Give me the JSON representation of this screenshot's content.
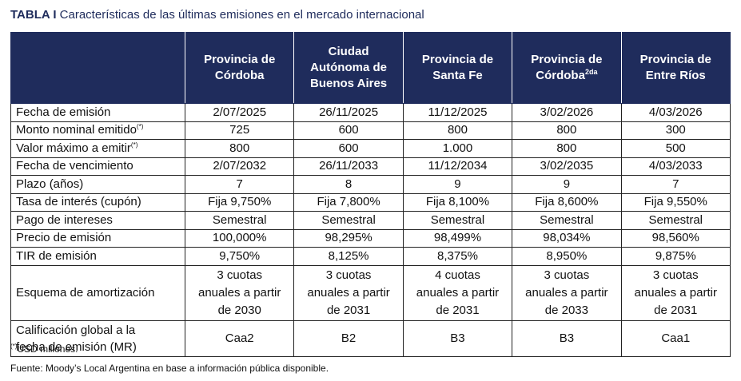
{
  "title": {
    "tag": "TABLA I",
    "text": "Características de las últimas emisiones en el mercado internacional"
  },
  "table": {
    "headers": [
      {
        "lines": [
          "Provincia de",
          "Córdoba"
        ],
        "sup": ""
      },
      {
        "lines": [
          "Ciudad",
          "Autónoma de",
          "Buenos Aires"
        ],
        "sup": ""
      },
      {
        "lines": [
          "Provincia de",
          "Santa Fe"
        ],
        "sup": ""
      },
      {
        "lines": [
          "Provincia de",
          "Córdoba"
        ],
        "sup": "2da"
      },
      {
        "lines": [
          "Provincia de",
          "Entre Ríos"
        ],
        "sup": ""
      }
    ],
    "rows": [
      {
        "label": "Fecha de emisión",
        "sup": "",
        "values": [
          "2/07/2025",
          "26/11/2025",
          "11/12/2025",
          "3/02/2026",
          "4/03/2026"
        ]
      },
      {
        "label": "Monto nominal emitido",
        "sup": "(*)",
        "values": [
          "725",
          "600",
          "800",
          "800",
          "300"
        ]
      },
      {
        "label": "Valor máximo a emitir",
        "sup": "(*)",
        "values": [
          "800",
          "600",
          "1.000",
          "800",
          "500"
        ]
      },
      {
        "label": "Fecha de vencimiento",
        "sup": "",
        "values": [
          "2/07/2032",
          "26/11/2033",
          "11/12/2034",
          "3/02/2035",
          "4/03/2033"
        ]
      },
      {
        "label": "Plazo (años)",
        "sup": "",
        "values": [
          "7",
          "8",
          "9",
          "9",
          "7"
        ]
      },
      {
        "label": "Tasa de interés (cupón)",
        "sup": "",
        "values": [
          "Fija 9,750%",
          "Fija 7,800%",
          "Fija 8,100%",
          "Fija 8,600%",
          "Fija 9,550%"
        ]
      },
      {
        "label": "Pago de intereses",
        "sup": "",
        "values": [
          "Semestral",
          "Semestral",
          "Semestral",
          "Semestral",
          "Semestral"
        ]
      },
      {
        "label": "Precio de emisión",
        "sup": "",
        "values": [
          "100,000%",
          "98,295%",
          "98,499%",
          "98,034%",
          "98,560%"
        ]
      },
      {
        "label": "TIR de emisión",
        "sup": "",
        "values": [
          "9,750%",
          "8,125%",
          "8,375%",
          "8,950%",
          "9,875%"
        ]
      }
    ],
    "amortization": {
      "label": "Esquema de amortización",
      "values": [
        [
          "3 cuotas",
          "anuales a partir",
          "de 2030"
        ],
        [
          "3 cuotas",
          "anuales a partir",
          "de 2031"
        ],
        [
          "4 cuotas",
          "anuales a partir",
          "de 2031"
        ],
        [
          "3 cuotas",
          "anuales a partir",
          "de 2033"
        ],
        [
          "3 cuotas",
          "anuales a partir",
          "de 2031"
        ]
      ]
    },
    "rating": {
      "label_lines": [
        "Calificación global a la",
        "fecha de emisión (MR)"
      ],
      "values": [
        "Caa2",
        "B2",
        "B3",
        "B3",
        "Caa1"
      ]
    }
  },
  "footnote": {
    "sup": "(*)",
    "text": "USD millones."
  },
  "source": "Fuente: Moody’s Local Argentina en base a información pública disponible.",
  "colors": {
    "header_bg": "#1f2c5c",
    "header_text": "#ffffff",
    "title": "#1f2c5c"
  }
}
